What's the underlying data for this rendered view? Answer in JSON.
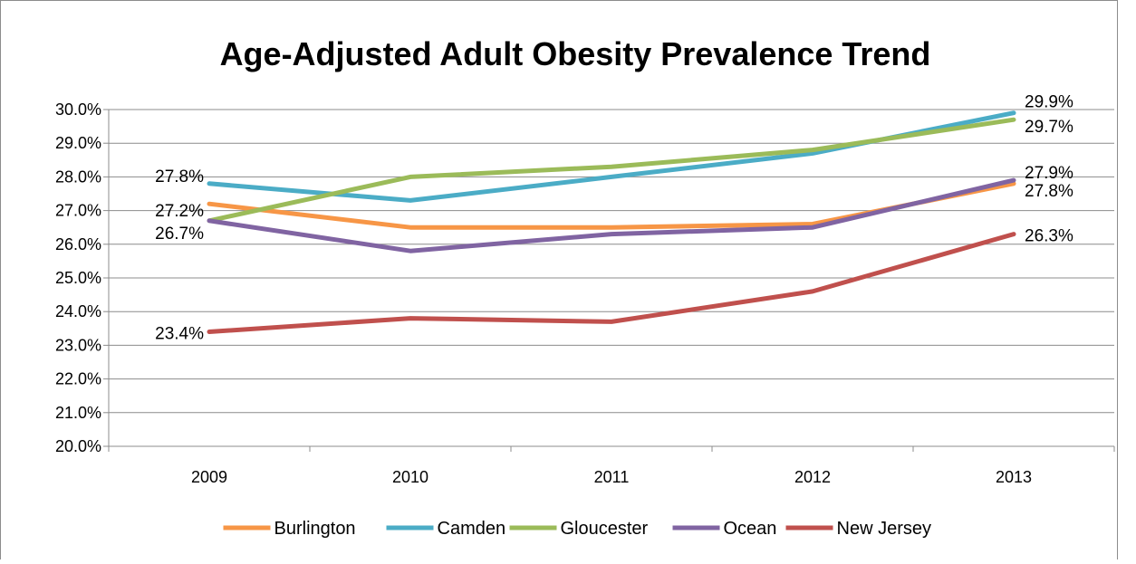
{
  "chart_data": {
    "type": "line",
    "title": "Age-Adjusted Adult Obesity Prevalence Trend",
    "xlabel": "",
    "ylabel": "",
    "categories": [
      "2009",
      "2010",
      "2011",
      "2012",
      "2013"
    ],
    "ylim": [
      20.0,
      30.0
    ],
    "y_ticks": [
      "20.0%",
      "21.0%",
      "22.0%",
      "23.0%",
      "24.0%",
      "25.0%",
      "26.0%",
      "27.0%",
      "28.0%",
      "29.0%",
      "30.0%"
    ],
    "grid": true,
    "legend_position": "bottom",
    "series": [
      {
        "name": "Burlington",
        "color": "#f79646",
        "values": [
          27.2,
          26.5,
          26.5,
          26.6,
          27.8
        ],
        "first_label": "27.2%",
        "last_label": "27.8%"
      },
      {
        "name": "Camden",
        "color": "#4bacc6",
        "values": [
          27.8,
          27.3,
          28.0,
          28.7,
          29.9
        ],
        "first_label": "27.8%",
        "last_label": "29.9%"
      },
      {
        "name": "Gloucester",
        "color": "#9bbb59",
        "values": [
          26.7,
          28.0,
          28.3,
          28.8,
          29.7
        ],
        "first_label": "",
        "last_label": "29.7%"
      },
      {
        "name": "Ocean",
        "color": "#8064a2",
        "values": [
          26.7,
          25.8,
          26.3,
          26.5,
          27.9
        ],
        "first_label": "26.7%",
        "last_label": "27.9%"
      },
      {
        "name": "New Jersey",
        "color": "#c0504d",
        "values": [
          23.4,
          23.8,
          23.7,
          24.6,
          26.3
        ],
        "first_label": "23.4%",
        "last_label": "26.3%"
      }
    ]
  }
}
